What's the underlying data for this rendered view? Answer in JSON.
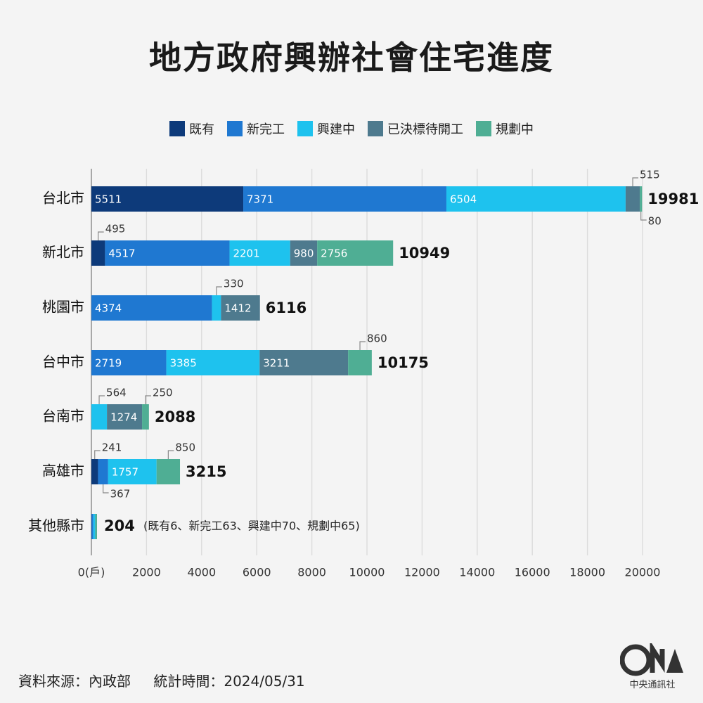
{
  "title": "地方政府興辦社會住宅進度",
  "legend": [
    {
      "label": "既有",
      "color": "#0d3a7a"
    },
    {
      "label": "新完工",
      "color": "#1f78d1"
    },
    {
      "label": "興建中",
      "color": "#1ec2ee"
    },
    {
      "label": "已決標待開工",
      "color": "#4e7a8e"
    },
    {
      "label": "規劃中",
      "color": "#4fae94"
    }
  ],
  "chart_data": {
    "type": "bar",
    "orientation": "horizontal",
    "stacked": true,
    "xlim": [
      0,
      20000
    ],
    "x_ticks": [
      "0(戶)",
      "2000",
      "4000",
      "6000",
      "8000",
      "10000",
      "12000",
      "14000",
      "16000",
      "18000",
      "20000"
    ],
    "categories": [
      "台北市",
      "新北市",
      "桃園市",
      "台中市",
      "台南市",
      "高雄市",
      "其他縣市"
    ],
    "series": [
      {
        "name": "既有",
        "values": [
          5511,
          495,
          0,
          0,
          0,
          241,
          6
        ]
      },
      {
        "name": "新完工",
        "values": [
          7371,
          4517,
          4374,
          2719,
          0,
          367,
          63
        ]
      },
      {
        "name": "興建中",
        "values": [
          6504,
          2201,
          330,
          3385,
          564,
          1757,
          70
        ]
      },
      {
        "name": "已決標待開工",
        "values": [
          515,
          980,
          1412,
          3211,
          1274,
          0,
          0
        ]
      },
      {
        "name": "規劃中",
        "values": [
          80,
          2756,
          0,
          860,
          250,
          850,
          65
        ]
      }
    ],
    "totals": [
      "19981",
      "10949",
      "6116",
      "10175",
      "2088",
      "3215",
      "204"
    ],
    "other_note": "(既有6、新完工63、興建中70、規劃中65)",
    "grid": true
  },
  "source": {
    "label": "資料來源：內政部",
    "time": "統計時間：2024/05/31"
  },
  "logo": {
    "text": "中央通訊社",
    "mark": "CNA"
  }
}
